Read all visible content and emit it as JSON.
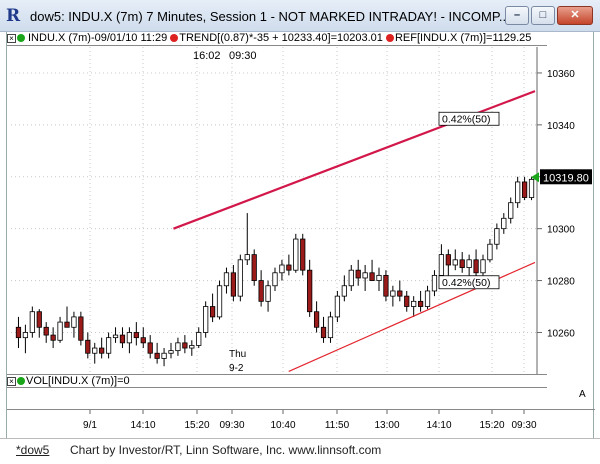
{
  "window": {
    "title": "dow5: INDU.X (7m) 7 Minutes, Session 1 - NOT MARKED INTRADAY! - INCOMP...",
    "minimize_glyph": "–",
    "maximize_glyph": "□",
    "close_glyph": "✕"
  },
  "legend": {
    "symbol": "INDU.X (7m)-09/01/10 11:29",
    "trend": "TREND[(0.87)*-35 + 10233.40]=10203.01",
    "ref": "REF[INDU.X (7m)]=1129.25"
  },
  "chart_data": {
    "type": "candlestick",
    "y_ticks": [
      10260,
      10280,
      10300,
      10320,
      10340,
      10360
    ],
    "ylim": [
      10244,
      10370
    ],
    "last_price": "10319.80",
    "session_label_time": "16:02",
    "session_label_time2": "09:30",
    "day_marker_top": "Thu",
    "day_marker_bottom": "9-2",
    "channel_upper_label": "0.42%(50)",
    "channel_lower_label": "0.42%(50)",
    "x_labels": [
      "9/1",
      "14:10",
      "15:20",
      "09:30",
      "10:40",
      "11:50",
      "13:00",
      "14:10",
      "15:20",
      "09:30"
    ],
    "upper_line": {
      "from": [
        0.31,
        10300
      ],
      "to": [
        1.0,
        10353
      ]
    },
    "lower_line": {
      "from": [
        0.53,
        10245
      ],
      "to": [
        1.0,
        10287
      ]
    },
    "candles": [
      [
        10262,
        10266,
        10254,
        10258
      ],
      [
        10258,
        10263,
        10252,
        10260
      ],
      [
        10260,
        10270,
        10258,
        10268
      ],
      [
        10268,
        10269,
        10258,
        10262
      ],
      [
        10262,
        10264,
        10256,
        10259
      ],
      [
        10259,
        10262,
        10254,
        10257
      ],
      [
        10257,
        10266,
        10256,
        10264
      ],
      [
        10264,
        10270,
        10262,
        10262
      ],
      [
        10262,
        10268,
        10258,
        10266
      ],
      [
        10266,
        10268,
        10255,
        10257
      ],
      [
        10257,
        10260,
        10250,
        10252
      ],
      [
        10252,
        10256,
        10248,
        10254
      ],
      [
        10254,
        10258,
        10250,
        10252
      ],
      [
        10252,
        10260,
        10250,
        10258
      ],
      [
        10258,
        10262,
        10256,
        10259
      ],
      [
        10259,
        10262,
        10254,
        10256
      ],
      [
        10256,
        10262,
        10252,
        10260
      ],
      [
        10260,
        10264,
        10255,
        10258
      ],
      [
        10258,
        10262,
        10254,
        10256
      ],
      [
        10256,
        10259,
        10250,
        10252
      ],
      [
        10252,
        10256,
        10248,
        10250
      ],
      [
        10250,
        10254,
        10247,
        10252
      ],
      [
        10252,
        10256,
        10250,
        10253
      ],
      [
        10253,
        10258,
        10251,
        10256
      ],
      [
        10256,
        10259,
        10252,
        10254
      ],
      [
        10254,
        10257,
        10251,
        10255
      ],
      [
        10255,
        10262,
        10254,
        10260
      ],
      [
        10260,
        10272,
        10258,
        10270
      ],
      [
        10270,
        10275,
        10264,
        10266
      ],
      [
        10266,
        10280,
        10265,
        10278
      ],
      [
        10278,
        10285,
        10275,
        10283
      ],
      [
        10283,
        10286,
        10272,
        10274
      ],
      [
        10274,
        10290,
        10272,
        10288
      ],
      [
        10288,
        10306,
        10286,
        10290
      ],
      [
        10290,
        10292,
        10278,
        10280
      ],
      [
        10280,
        10284,
        10270,
        10272
      ],
      [
        10272,
        10280,
        10268,
        10278
      ],
      [
        10278,
        10285,
        10276,
        10283
      ],
      [
        10283,
        10288,
        10280,
        10286
      ],
      [
        10286,
        10290,
        10282,
        10284
      ],
      [
        10284,
        10298,
        10283,
        10296
      ],
      [
        10296,
        10298,
        10282,
        10284
      ],
      [
        10284,
        10288,
        10266,
        10268
      ],
      [
        10268,
        10272,
        10260,
        10262
      ],
      [
        10262,
        10266,
        10256,
        10258
      ],
      [
        10258,
        10268,
        10256,
        10266
      ],
      [
        10266,
        10276,
        10264,
        10274
      ],
      [
        10274,
        10282,
        10272,
        10278
      ],
      [
        10278,
        10286,
        10276,
        10284
      ],
      [
        10284,
        10288,
        10278,
        10281
      ],
      [
        10281,
        10286,
        10276,
        10283
      ],
      [
        10283,
        10288,
        10280,
        10280
      ],
      [
        10280,
        10285,
        10276,
        10282
      ],
      [
        10282,
        10284,
        10272,
        10274
      ],
      [
        10274,
        10278,
        10270,
        10276
      ],
      [
        10276,
        10280,
        10272,
        10274
      ],
      [
        10274,
        10276,
        10268,
        10270
      ],
      [
        10270,
        10274,
        10266,
        10272
      ],
      [
        10272,
        10276,
        10268,
        10270
      ],
      [
        10270,
        10278,
        10269,
        10276
      ],
      [
        10276,
        10284,
        10274,
        10282
      ],
      [
        10282,
        10294,
        10280,
        10290
      ],
      [
        10290,
        10292,
        10282,
        10286
      ],
      [
        10286,
        10292,
        10284,
        10288
      ],
      [
        10288,
        10291,
        10283,
        10285
      ],
      [
        10285,
        10290,
        10282,
        10288
      ],
      [
        10288,
        10292,
        10280,
        10283
      ],
      [
        10283,
        10290,
        10282,
        10288
      ],
      [
        10288,
        10296,
        10287,
        10294
      ],
      [
        10294,
        10302,
        10292,
        10300
      ],
      [
        10300,
        10306,
        10298,
        10304
      ],
      [
        10304,
        10312,
        10302,
        10310
      ],
      [
        10310,
        10320,
        10308,
        10318
      ],
      [
        10318,
        10320,
        10311,
        10312
      ],
      [
        10312,
        10320,
        10311,
        10319
      ]
    ]
  },
  "vol": {
    "label": "VOL[INDU.X (7m)]=0"
  },
  "scroll": {
    "a_label": "A"
  },
  "status": {
    "tab": "*dow5",
    "credits": "Chart by Investor/RT, Linn Software, Inc. www.linnsoft.com"
  }
}
